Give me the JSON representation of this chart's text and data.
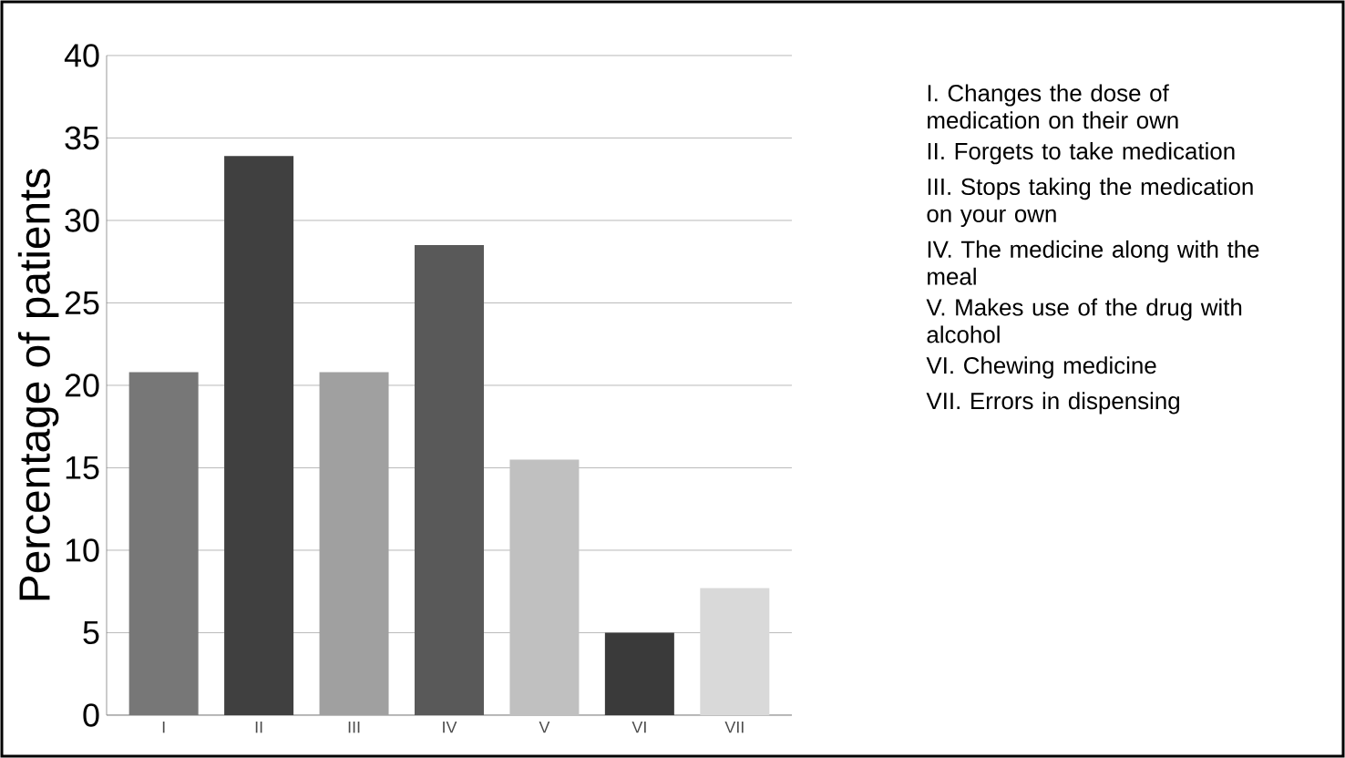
{
  "chart_data": {
    "type": "bar",
    "ylabel": "Percentage of patients",
    "categories": [
      "I",
      "II",
      "III",
      "IV",
      "V",
      "VI",
      "VII"
    ],
    "values": [
      20.8,
      33.9,
      20.8,
      28.5,
      15.5,
      5.0,
      7.7
    ],
    "colors": [
      "#777777",
      "#404040",
      "#a0a0a0",
      "#595959",
      "#c0c0c0",
      "#3a3a3a",
      "#d9d9d9"
    ],
    "ylim": [
      0,
      40
    ],
    "yticks": [
      0,
      5,
      10,
      15,
      20,
      25,
      30,
      35,
      40
    ],
    "grid": "y",
    "annotations": [
      "I. Changes the dose of medication on their own",
      "II. Forgets to take medication",
      "III. Stops taking the medication on your own",
      "IV. The medicine along with the meal",
      "V. Makes use of the drug with alcohol",
      "VI. Chewing medicine",
      "VII. Errors in dispensing"
    ]
  }
}
